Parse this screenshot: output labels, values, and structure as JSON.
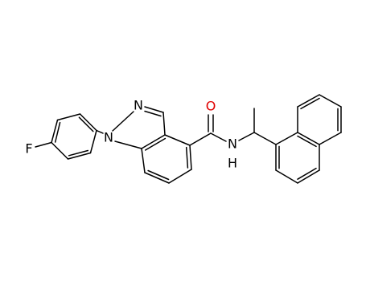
{
  "atoms": [
    {
      "label": "F"
    },
    {
      "label": "N"
    },
    {
      "label": "N"
    },
    {
      "label": "O"
    },
    {
      "label": "N"
    },
    {
      "label": "H"
    }
  ]
}
